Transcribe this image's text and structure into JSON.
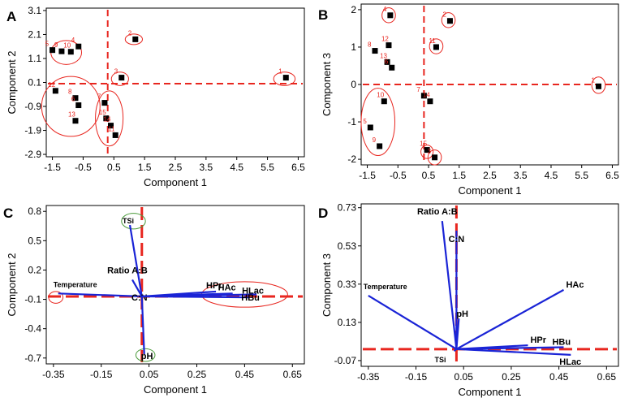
{
  "chart_data": [
    {
      "panel": "A",
      "type": "scatter",
      "xlabel": "Component 1",
      "ylabel": "Component 2",
      "xlim": [
        -1.7,
        6.7
      ],
      "ylim": [
        -3.0,
        3.2
      ],
      "xticks": [
        "-1.5",
        "-0.5",
        "0.5",
        "1.5",
        "2.5",
        "3.5",
        "4.5",
        "5.5",
        "6.5"
      ],
      "yticks": [
        "3.1",
        "2.1",
        "1.1",
        "0.1",
        "-0.9",
        "-1.9",
        "-2.9"
      ],
      "xtick_values": [
        -1.5,
        -0.5,
        0.5,
        1.5,
        2.5,
        3.5,
        4.5,
        5.5,
        6.5
      ],
      "ytick_values": [
        3.1,
        2.1,
        1.1,
        0.1,
        -0.9,
        -1.9,
        -2.9
      ],
      "ref_x": 0.3,
      "ref_y": 0.05,
      "points": [
        {
          "label": "1",
          "x": 6.1,
          "y": 0.3
        },
        {
          "label": "2",
          "x": 1.2,
          "y": 1.9
        },
        {
          "label": "3",
          "x": 0.75,
          "y": 0.3
        },
        {
          "label": "4",
          "x": -0.65,
          "y": 1.6
        },
        {
          "label": "5",
          "x": -1.5,
          "y": 1.45
        },
        {
          "label": "9",
          "x": -1.2,
          "y": 1.4
        },
        {
          "label": "10",
          "x": -0.9,
          "y": 1.38
        },
        {
          "label": "12",
          "x": -1.4,
          "y": -0.25
        },
        {
          "label": "8",
          "x": -0.75,
          "y": -0.55
        },
        {
          "label": "6",
          "x": -0.65,
          "y": -0.85
        },
        {
          "label": "13",
          "x": -0.75,
          "y": -1.5
        },
        {
          "label": "7",
          "x": 0.2,
          "y": -0.75
        },
        {
          "label": "15",
          "x": 0.25,
          "y": -1.4
        },
        {
          "label": "14",
          "x": 0.4,
          "y": -1.7
        },
        {
          "label": "11",
          "x": 0.55,
          "y": -2.1
        }
      ],
      "ellipses": [
        {
          "cx": -1.05,
          "cy": 1.35,
          "rx": 0.5,
          "ry": 0.5
        },
        {
          "cx": 1.15,
          "cy": 1.9,
          "rx": 0.28,
          "ry": 0.22
        },
        {
          "cx": 0.7,
          "cy": 0.25,
          "rx": 0.28,
          "ry": 0.28
        },
        {
          "cx": 6.05,
          "cy": 0.25,
          "rx": 0.35,
          "ry": 0.28
        },
        {
          "cx": -0.9,
          "cy": -0.9,
          "rx": 0.95,
          "ry": 1.25
        },
        {
          "cx": 0.35,
          "cy": -1.4,
          "rx": 0.45,
          "ry": 1.15
        }
      ]
    },
    {
      "panel": "B",
      "type": "scatter",
      "xlabel": "Component 1",
      "ylabel": "Component 3",
      "xlim": [
        -1.7,
        6.7
      ],
      "ylim": [
        -2.15,
        2.15
      ],
      "xticks": [
        "-1.5",
        "-0.5",
        "0.5",
        "1.5",
        "2.5",
        "3.5",
        "4.5",
        "5.5",
        "6.5"
      ],
      "yticks": [
        "2",
        "1",
        "0",
        "-1",
        "-2"
      ],
      "xtick_values": [
        -1.5,
        -0.5,
        0.5,
        1.5,
        2.5,
        3.5,
        4.5,
        5.5,
        6.5
      ],
      "ytick_values": [
        2,
        1,
        0,
        -1,
        -2
      ],
      "ref_x": 0.35,
      "ref_y": 0.0,
      "points": [
        {
          "label": "4",
          "x": -0.75,
          "y": 1.85
        },
        {
          "label": "2",
          "x": 1.2,
          "y": 1.7
        },
        {
          "label": "12",
          "x": -0.8,
          "y": 1.05
        },
        {
          "label": "11",
          "x": 0.75,
          "y": 1.0
        },
        {
          "label": "8",
          "x": -1.25,
          "y": 0.9
        },
        {
          "label": "13",
          "x": -0.85,
          "y": 0.6
        },
        {
          "label": "6",
          "x": -0.7,
          "y": 0.45
        },
        {
          "label": "1",
          "x": 6.05,
          "y": -0.05
        },
        {
          "label": "7",
          "x": 0.35,
          "y": -0.3
        },
        {
          "label": "14",
          "x": 0.55,
          "y": -0.45
        },
        {
          "label": "10",
          "x": -0.95,
          "y": -0.45
        },
        {
          "label": "5",
          "x": -1.4,
          "y": -1.15
        },
        {
          "label": "9",
          "x": -1.1,
          "y": -1.65
        },
        {
          "label": "15",
          "x": 0.45,
          "y": -1.75
        },
        {
          "label": "3",
          "x": 0.7,
          "y": -1.95
        }
      ],
      "ellipses": [
        {
          "cx": -0.8,
          "cy": 1.85,
          "rx": 0.22,
          "ry": 0.2
        },
        {
          "cx": 1.15,
          "cy": 1.72,
          "rx": 0.22,
          "ry": 0.2
        },
        {
          "cx": 0.75,
          "cy": 1.02,
          "rx": 0.22,
          "ry": 0.2
        },
        {
          "cx": 6.05,
          "cy": -0.02,
          "rx": 0.22,
          "ry": 0.22
        },
        {
          "cx": -1.15,
          "cy": -1.0,
          "rx": 0.55,
          "ry": 0.9
        },
        {
          "cx": 0.45,
          "cy": -1.8,
          "rx": 0.2,
          "ry": 0.18
        },
        {
          "cx": 0.7,
          "cy": -1.95,
          "rx": 0.22,
          "ry": 0.2
        }
      ]
    },
    {
      "panel": "C",
      "type": "biplot",
      "xlabel": "Component 1",
      "ylabel": "Component 2",
      "xlim": [
        -0.38,
        0.7
      ],
      "ylim": [
        -0.76,
        0.86
      ],
      "xticks": [
        "-0.35",
        "-0.15",
        "0.05",
        "0.25",
        "0.45",
        "0.65"
      ],
      "yticks": [
        "0.8",
        "0.5",
        "0.2",
        "-0.1",
        "-0.4",
        "-0.7"
      ],
      "xtick_values": [
        -0.35,
        -0.15,
        0.05,
        0.25,
        0.45,
        0.65
      ],
      "ytick_values": [
        0.8,
        0.5,
        0.2,
        -0.1,
        -0.4,
        -0.7
      ],
      "ref_x": 0.02,
      "ref_y": -0.07,
      "origin": [
        0.02,
        -0.07
      ],
      "vectors": [
        {
          "label": "Temperature",
          "x": -0.33,
          "y": -0.04
        },
        {
          "label": "TSi",
          "x": -0.03,
          "y": 0.66
        },
        {
          "label": "Ratio A:B",
          "x": -0.02,
          "y": 0.1
        },
        {
          "label": "C:N",
          "x": 0.01,
          "y": -0.07
        },
        {
          "label": "HPr",
          "x": 0.33,
          "y": -0.02
        },
        {
          "label": "HAc",
          "x": 0.4,
          "y": -0.04
        },
        {
          "label": "HLac",
          "x": 0.5,
          "y": -0.05
        },
        {
          "label": "HBu",
          "x": 0.47,
          "y": -0.08
        },
        {
          "label": "pH",
          "x": 0.03,
          "y": -0.66
        }
      ],
      "ellipses": [
        {
          "cx": -0.34,
          "cy": -0.08,
          "rx": 0.03,
          "ry": 0.06
        },
        {
          "cx": -0.015,
          "cy": 0.7,
          "rx": 0.05,
          "ry": 0.08
        },
        {
          "cx": 0.45,
          "cy": -0.05,
          "rx": 0.18,
          "ry": 0.13
        },
        {
          "cx": 0.035,
          "cy": -0.67,
          "rx": 0.04,
          "ry": 0.065
        }
      ]
    },
    {
      "panel": "D",
      "type": "biplot",
      "xlabel": "Component 1",
      "ylabel": "Component 3",
      "xlim": [
        -0.38,
        0.7
      ],
      "ylim": [
        -0.1,
        0.75
      ],
      "xticks": [
        "-0.35",
        "-0.15",
        "0.05",
        "0.25",
        "0.45",
        "0.65"
      ],
      "yticks": [
        "0.73",
        "0.53",
        "0.33",
        "0.13",
        "-0.07"
      ],
      "xtick_values": [
        -0.35,
        -0.15,
        0.05,
        0.25,
        0.45,
        0.65
      ],
      "ytick_values": [
        0.73,
        0.53,
        0.33,
        0.13,
        -0.07
      ],
      "ref_x": 0.02,
      "ref_y": -0.01,
      "origin": [
        0.02,
        -0.01
      ],
      "vectors": [
        {
          "label": "Ratio A:B",
          "x": -0.04,
          "y": 0.66
        },
        {
          "label": "C:N",
          "x": 0.02,
          "y": 0.61
        },
        {
          "label": "Temperature",
          "x": -0.35,
          "y": 0.27
        },
        {
          "label": "HAc",
          "x": 0.47,
          "y": 0.3
        },
        {
          "label": "pH",
          "x": 0.03,
          "y": 0.15
        },
        {
          "label": "HPr",
          "x": 0.32,
          "y": 0.01
        },
        {
          "label": "HBu",
          "x": 0.47,
          "y": 0.0
        },
        {
          "label": "HLac",
          "x": 0.5,
          "y": -0.04
        },
        {
          "label": "TSi",
          "x": 0.01,
          "y": -0.02
        }
      ],
      "ellipses": []
    }
  ],
  "panel_letters": [
    "A",
    "B",
    "C",
    "D"
  ],
  "colors": {
    "marker": "#000000",
    "reference_line": "#e8261f",
    "ellipse": "#e8261f",
    "ellipse_alt": "#4a9a3a",
    "vector": "#1a24d6",
    "label": "#e8261f"
  }
}
